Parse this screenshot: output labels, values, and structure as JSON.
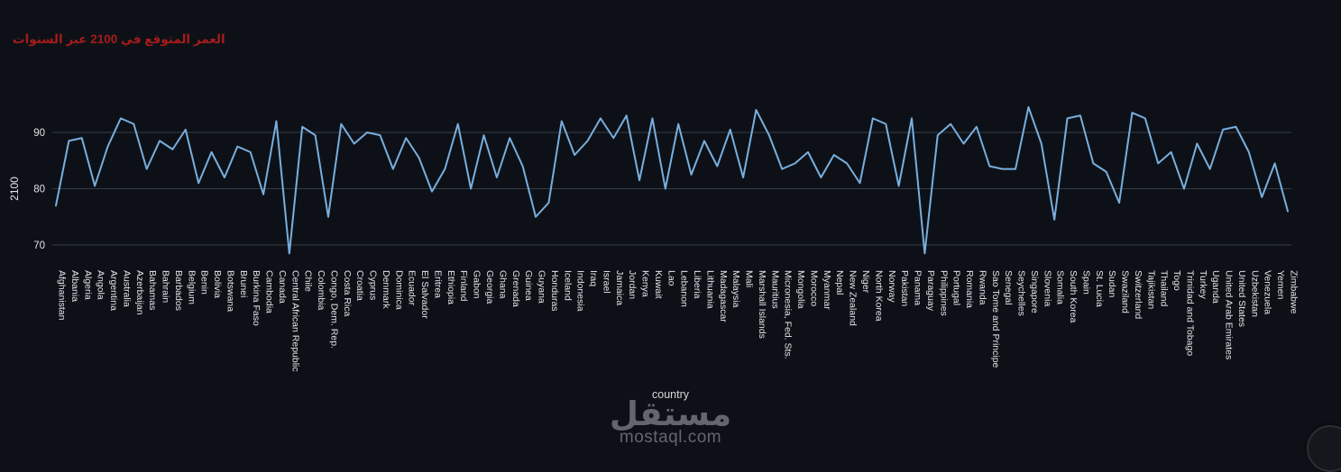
{
  "chart_data": {
    "type": "line",
    "title": "العمر المتوقع في 2100 عبر السنوات",
    "title_color": "#a61b1b",
    "xlabel": "country",
    "ylabel": "2100",
    "yticks": [
      90,
      80,
      70
    ],
    "ylim": [
      66,
      96
    ],
    "grid": "horizontal",
    "legend": "none",
    "background_color": "#0d1117",
    "line_color": "#79aede",
    "categories": [
      "Afghanistan",
      "Albania",
      "Algeria",
      "Angola",
      "Argentina",
      "Australia",
      "Azerbaijan",
      "Bahamas",
      "Bahrain",
      "Barbados",
      "Belgium",
      "Benin",
      "Bolivia",
      "Botswana",
      "Brunei",
      "Burkina Faso",
      "Cambodia",
      "Canada",
      "Central African Republic",
      "Chile",
      "Colombia",
      "Congo, Dem. Rep.",
      "Costa Rica",
      "Croatia",
      "Cyprus",
      "Denmark",
      "Dominica",
      "Ecuador",
      "El Salvador",
      "Eritrea",
      "Ethiopia",
      "Finland",
      "Gabon",
      "Georgia",
      "Ghana",
      "Grenada",
      "Guinea",
      "Guyana",
      "Honduras",
      "Iceland",
      "Indonesia",
      "Iraq",
      "Israel",
      "Jamaica",
      "Jordan",
      "Kenya",
      "Kuwait",
      "Lao",
      "Lebanon",
      "Liberia",
      "Lithuania",
      "Madagascar",
      "Malaysia",
      "Mali",
      "Marshall Islands",
      "Mauritius",
      "Micronesia, Fed. Sts.",
      "Mongolia",
      "Morocco",
      "Myanmar",
      "Nepal",
      "New Zealand",
      "Niger",
      "North Korea",
      "Norway",
      "Pakistan",
      "Panama",
      "Paraguay",
      "Philippines",
      "Portugal",
      "Romania",
      "Rwanda",
      "Sao Tome and Principe",
      "Senegal",
      "Seychelles",
      "Singapore",
      "Slovenia",
      "Somalia",
      "South Korea",
      "Spain",
      "St. Lucia",
      "Sudan",
      "Swaziland",
      "Switzerland",
      "Tajikistan",
      "Thailand",
      "Togo",
      "Trinidad and Tobago",
      "Turkey",
      "Uganda",
      "United Arab Emirates",
      "United States",
      "Uzbekistan",
      "Venezuela",
      "Yemen",
      "Zimbabwe"
    ],
    "values": [
      77,
      88.5,
      89,
      80.5,
      87.5,
      92.5,
      91.5,
      83.5,
      88.5,
      87,
      90.5,
      81,
      86.5,
      82,
      87.5,
      86.5,
      79,
      92,
      68.5,
      91,
      89.5,
      75,
      91.5,
      88,
      90,
      89.5,
      83.5,
      89,
      85.5,
      79.5,
      83.5,
      91.5,
      80,
      89.5,
      82,
      89,
      84,
      75,
      77.5,
      92,
      86,
      88.5,
      92.5,
      89,
      93,
      81.5,
      92.5,
      80,
      91.5,
      82.5,
      88.5,
      84,
      90.5,
      82,
      94,
      89.5,
      83.5,
      84.5,
      86.5,
      82,
      86,
      84.5,
      81,
      92.5,
      91.5,
      80.5,
      92.5,
      68.5,
      89.5,
      91.5,
      88,
      91,
      84,
      83.5,
      83.5,
      94.5,
      88,
      74.5,
      92.5,
      93,
      84.5,
      83,
      77.5,
      93.5,
      92.5,
      84.5,
      86.5,
      80,
      88,
      83.5,
      90.5,
      91,
      86.5,
      78.5,
      84.5,
      76
    ]
  },
  "watermark": {
    "arabic": "مستقل",
    "domain": "mostaql.com"
  }
}
